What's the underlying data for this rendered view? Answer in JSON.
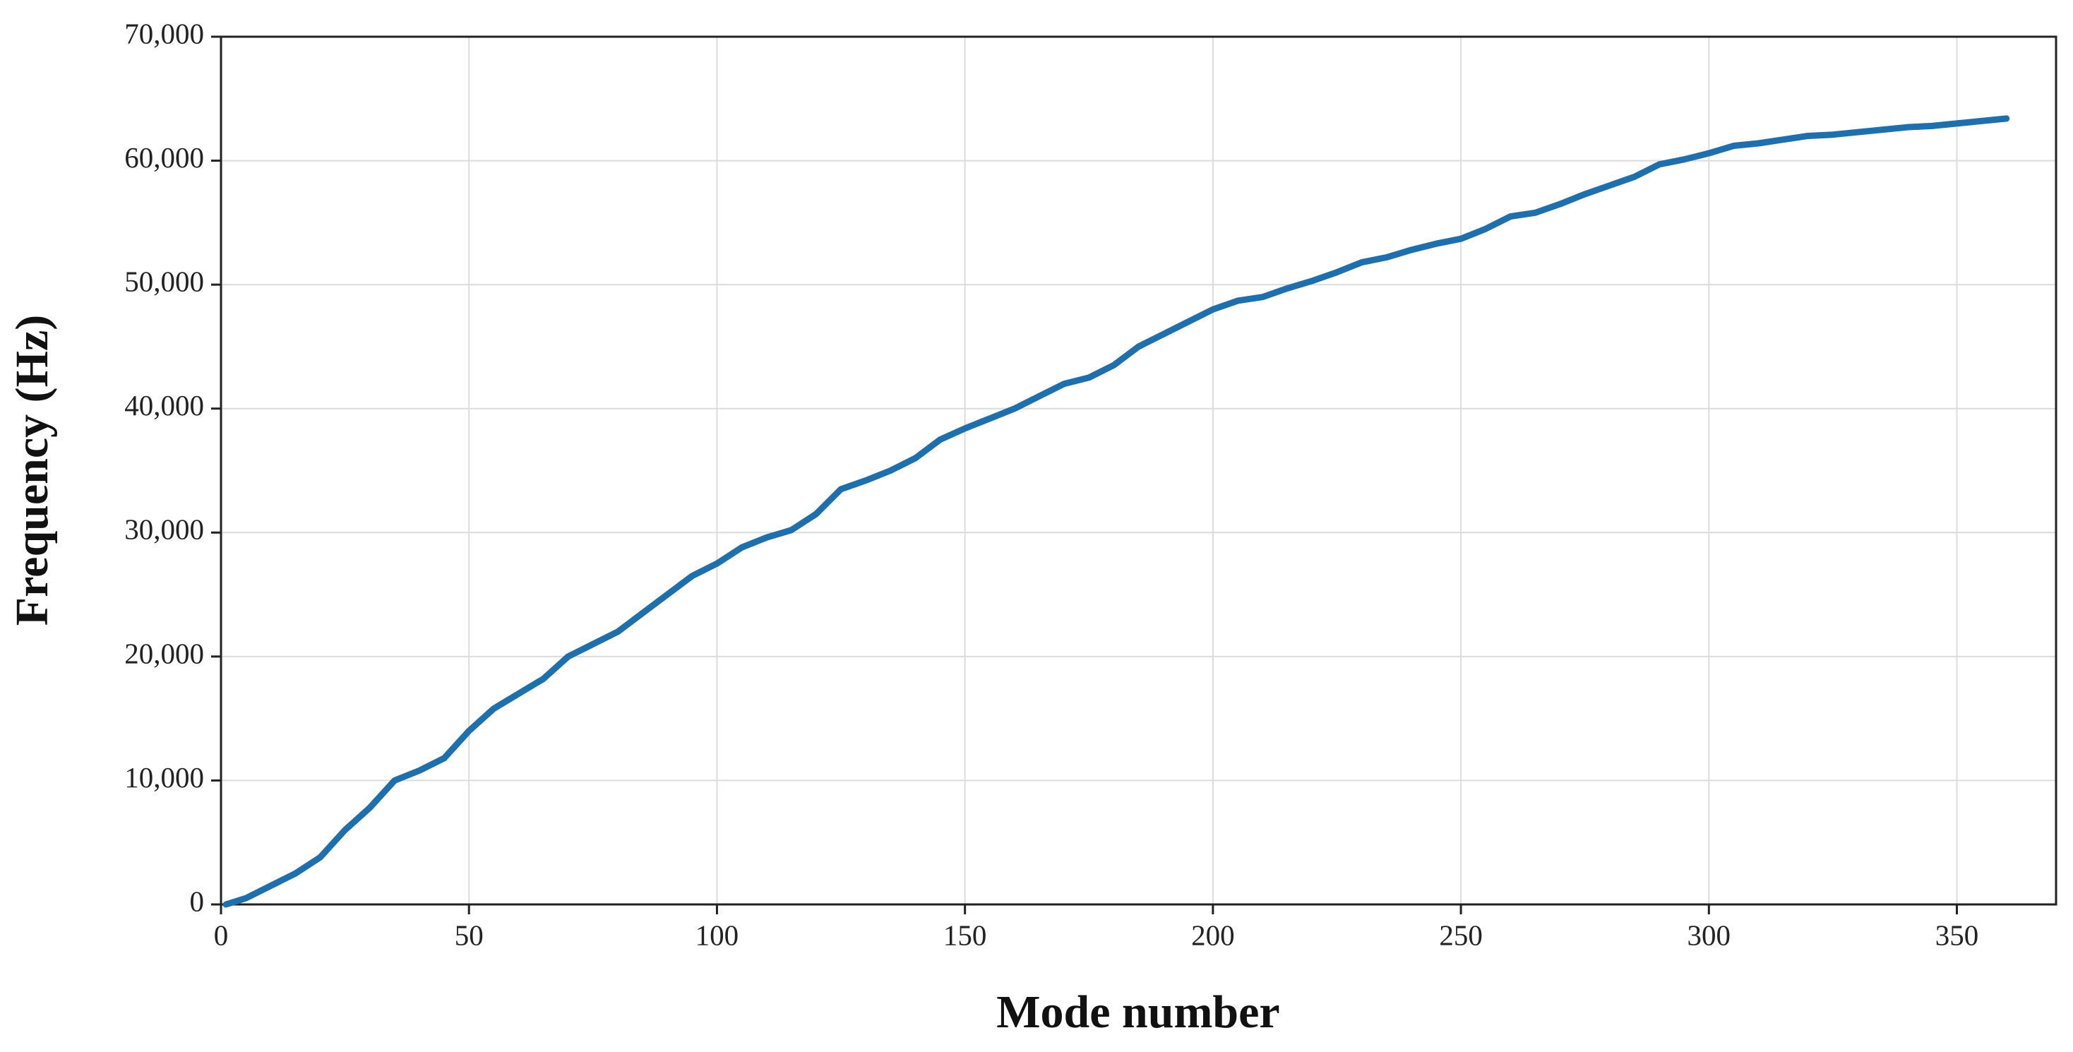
{
  "chart_data": {
    "type": "line",
    "x_label": "Mode number",
    "y_label": "Frequency (Hz)",
    "x": [
      1,
      5,
      10,
      15,
      20,
      25,
      30,
      35,
      40,
      45,
      50,
      55,
      60,
      65,
      70,
      75,
      80,
      85,
      90,
      95,
      100,
      105,
      110,
      115,
      120,
      125,
      130,
      135,
      140,
      145,
      150,
      155,
      160,
      165,
      170,
      175,
      180,
      185,
      190,
      195,
      200,
      205,
      210,
      215,
      220,
      225,
      230,
      235,
      240,
      245,
      250,
      255,
      260,
      265,
      270,
      275,
      280,
      285,
      290,
      295,
      300,
      305,
      310,
      315,
      320,
      325,
      330,
      335,
      340,
      345,
      350,
      355,
      360
    ],
    "series": [
      {
        "color": "#1f6fad",
        "values": [
          0,
          500,
          1500,
          2500,
          3800,
          6000,
          7800,
          10000,
          10800,
          11800,
          14000,
          15800,
          17000,
          18200,
          20000,
          21000,
          22000,
          23500,
          25000,
          26500,
          27500,
          28800,
          29600,
          30200,
          31500,
          33500,
          34200,
          35000,
          36000,
          37500,
          38400,
          39200,
          40000,
          41000,
          42000,
          42500,
          43500,
          45000,
          46000,
          47000,
          48000,
          48700,
          49000,
          49700,
          50300,
          51000,
          51800,
          52200,
          52800,
          53300,
          53700,
          54500,
          55500,
          55800,
          56500,
          57300,
          58000,
          58700,
          59700,
          60100,
          60600,
          61200,
          61400,
          61700,
          62000,
          62100,
          62300,
          62500,
          62700,
          62800,
          63000,
          63200,
          63400
        ]
      }
    ],
    "xlim": [
      0,
      370
    ],
    "ylim": [
      0,
      70000
    ],
    "xticks": [
      0,
      50,
      100,
      150,
      200,
      250,
      300,
      350
    ],
    "yticks": [
      0,
      {
        "value": 10000,
        "label": "10,000"
      },
      {
        "value": 20000,
        "label": "20,000"
      },
      {
        "value": 30000,
        "label": "30,000"
      },
      {
        "value": 40000,
        "label": "40,000"
      },
      {
        "value": 50000,
        "label": "50,000"
      },
      {
        "value": 60000,
        "label": "60,000"
      },
      {
        "value": 70000,
        "label": "70,000"
      }
    ],
    "grid": true
  }
}
